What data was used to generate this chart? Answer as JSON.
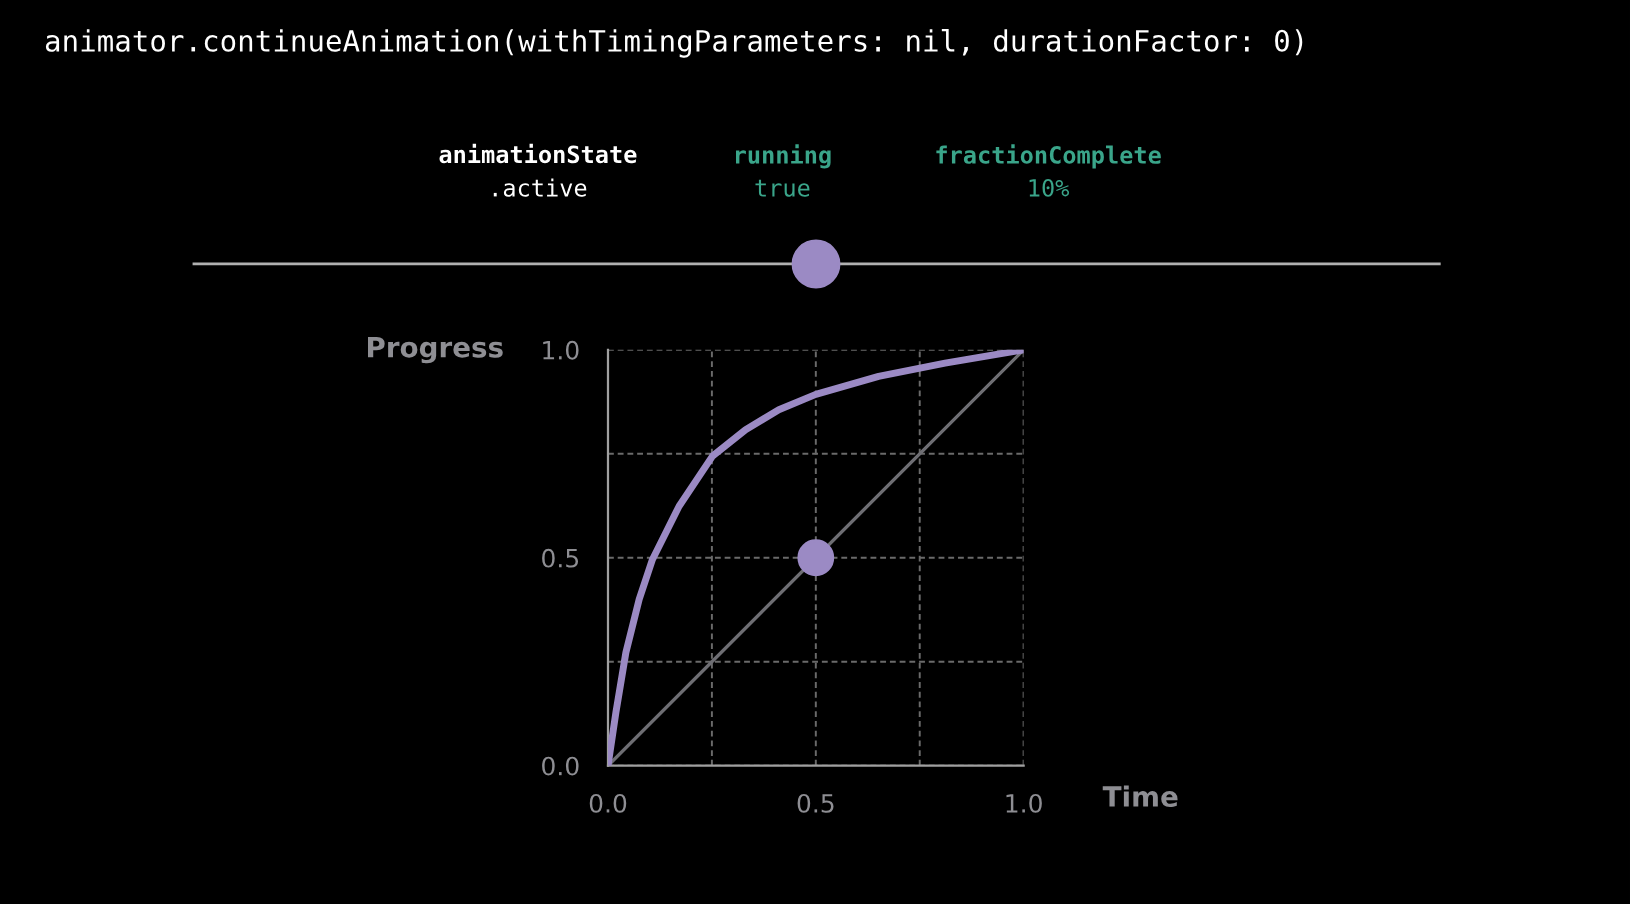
{
  "chart_data": {
    "type": "line",
    "title": "animator.continueAnimation(withTimingParameters: nil, durationFactor: 0)",
    "annotations": [
      "animationState",
      ".active",
      "running",
      "true",
      "fractionComplete",
      "10%"
    ],
    "xlabel": "Time",
    "ylabel": "Progress",
    "series": [
      {
        "color": "#9b8ac4",
        "x": [
          0,
          0.019,
          0.043,
          0.075,
          0.107,
          0.171,
          0.251,
          0.331,
          0.411,
          0.5,
          0.651,
          0.811,
          1
        ],
        "values": [
          0,
          0.128,
          0.272,
          0.4,
          0.496,
          0.624,
          0.744,
          0.808,
          0.856,
          0.893,
          0.936,
          0.968,
          1
        ]
      },
      {
        "color": "#6e6e73",
        "x": [
          0,
          1
        ],
        "values": [
          0,
          1
        ]
      },
      {
        "type": "scatter",
        "color": "#9b8ac4",
        "x": [
          0.5
        ],
        "values": [
          0.5
        ]
      }
    ],
    "xlim": [
      0,
      1
    ],
    "ylim": [
      0,
      1
    ],
    "xticks": [
      {
        "value": 0,
        "label": "0.0"
      },
      {
        "value": 0.25,
        "label": null
      },
      {
        "value": 0.5,
        "label": "0.5"
      },
      {
        "value": 0.75,
        "label": null
      },
      {
        "value": 1,
        "label": "1.0"
      }
    ],
    "yticks": [
      {
        "value": 0,
        "label": "0.0"
      },
      {
        "value": 0.25,
        "label": null
      },
      {
        "value": 0.5,
        "label": "0.5"
      },
      {
        "value": 0.75,
        "label": null
      },
      {
        "value": 1,
        "label": "1.0"
      }
    ],
    "grid": true,
    "line_style": "solid"
  }
}
